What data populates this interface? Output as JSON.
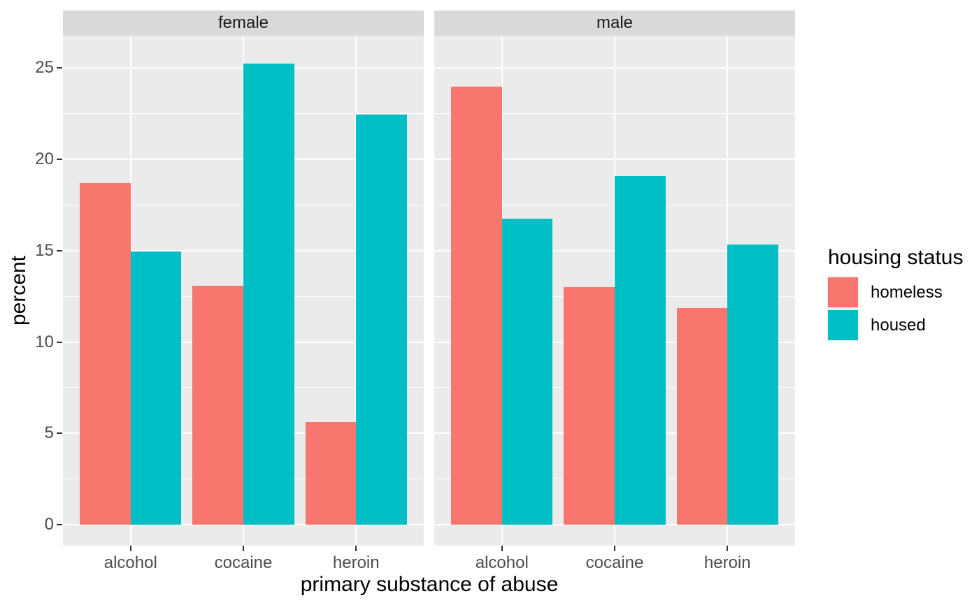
{
  "chart_data": {
    "type": "bar",
    "title": "",
    "xlabel": "primary substance of abuse",
    "ylabel": "percent",
    "facets": [
      {
        "label": "female",
        "categories": [
          "alcohol",
          "cocaine",
          "heroin"
        ],
        "series": [
          {
            "name": "homeless",
            "values": [
              18.69,
              13.08,
              5.61
            ]
          },
          {
            "name": "housed",
            "values": [
              14.95,
              25.23,
              22.43
            ]
          }
        ]
      },
      {
        "label": "male",
        "categories": [
          "alcohol",
          "cocaine",
          "heroin"
        ],
        "series": [
          {
            "name": "homeless",
            "values": [
              23.99,
              13.01,
              11.85
            ]
          },
          {
            "name": "housed",
            "values": [
              16.76,
              19.08,
              15.32
            ]
          }
        ]
      }
    ],
    "yticks": [
      0,
      5,
      10,
      15,
      20,
      25
    ],
    "yticks_minor": [
      2.5,
      7.5,
      12.5,
      17.5,
      22.5
    ],
    "ylim": [
      0,
      26.6
    ],
    "grid": "major+minor, white on grey panel",
    "legend_position": "right",
    "legend": {
      "title": "housing status",
      "entries": [
        {
          "label": "homeless",
          "color": "#F8766D"
        },
        {
          "label": "housed",
          "color": "#00BFC4"
        }
      ]
    },
    "colors": {
      "panel_background": "#EBEBEB",
      "strip_background": "#D9D9D9",
      "gridline": "#FFFFFF",
      "axis_text": "#4D4D4D",
      "tick_mark": "#333333"
    }
  }
}
